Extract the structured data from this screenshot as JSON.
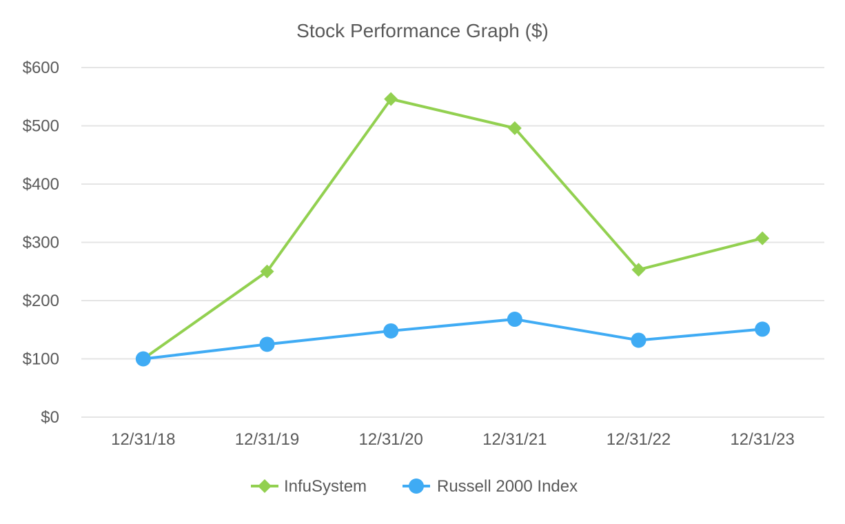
{
  "chart_data": {
    "type": "line",
    "title": "Stock Performance Graph ($)",
    "xlabel": "",
    "ylabel": "",
    "categories": [
      "12/31/18",
      "12/31/19",
      "12/31/20",
      "12/31/21",
      "12/31/22",
      "12/31/23"
    ],
    "ylim": [
      0,
      600
    ],
    "yticks": [
      {
        "value": 0,
        "label": "$0"
      },
      {
        "value": 100,
        "label": "$100"
      },
      {
        "value": 200,
        "label": "$200"
      },
      {
        "value": 300,
        "label": "$300"
      },
      {
        "value": 400,
        "label": "$400"
      },
      {
        "value": 500,
        "label": "$500"
      },
      {
        "value": 600,
        "label": "$600"
      }
    ],
    "grid": true,
    "legend_position": "bottom",
    "series": [
      {
        "name": "InfuSystem",
        "marker": "diamond",
        "color": "#92d050",
        "values": [
          100,
          250,
          546,
          496,
          253,
          307
        ]
      },
      {
        "name": "Russell 2000 Index",
        "marker": "circle",
        "color": "#3fabf4",
        "values": [
          100,
          125,
          148,
          168,
          132,
          151
        ]
      }
    ]
  }
}
